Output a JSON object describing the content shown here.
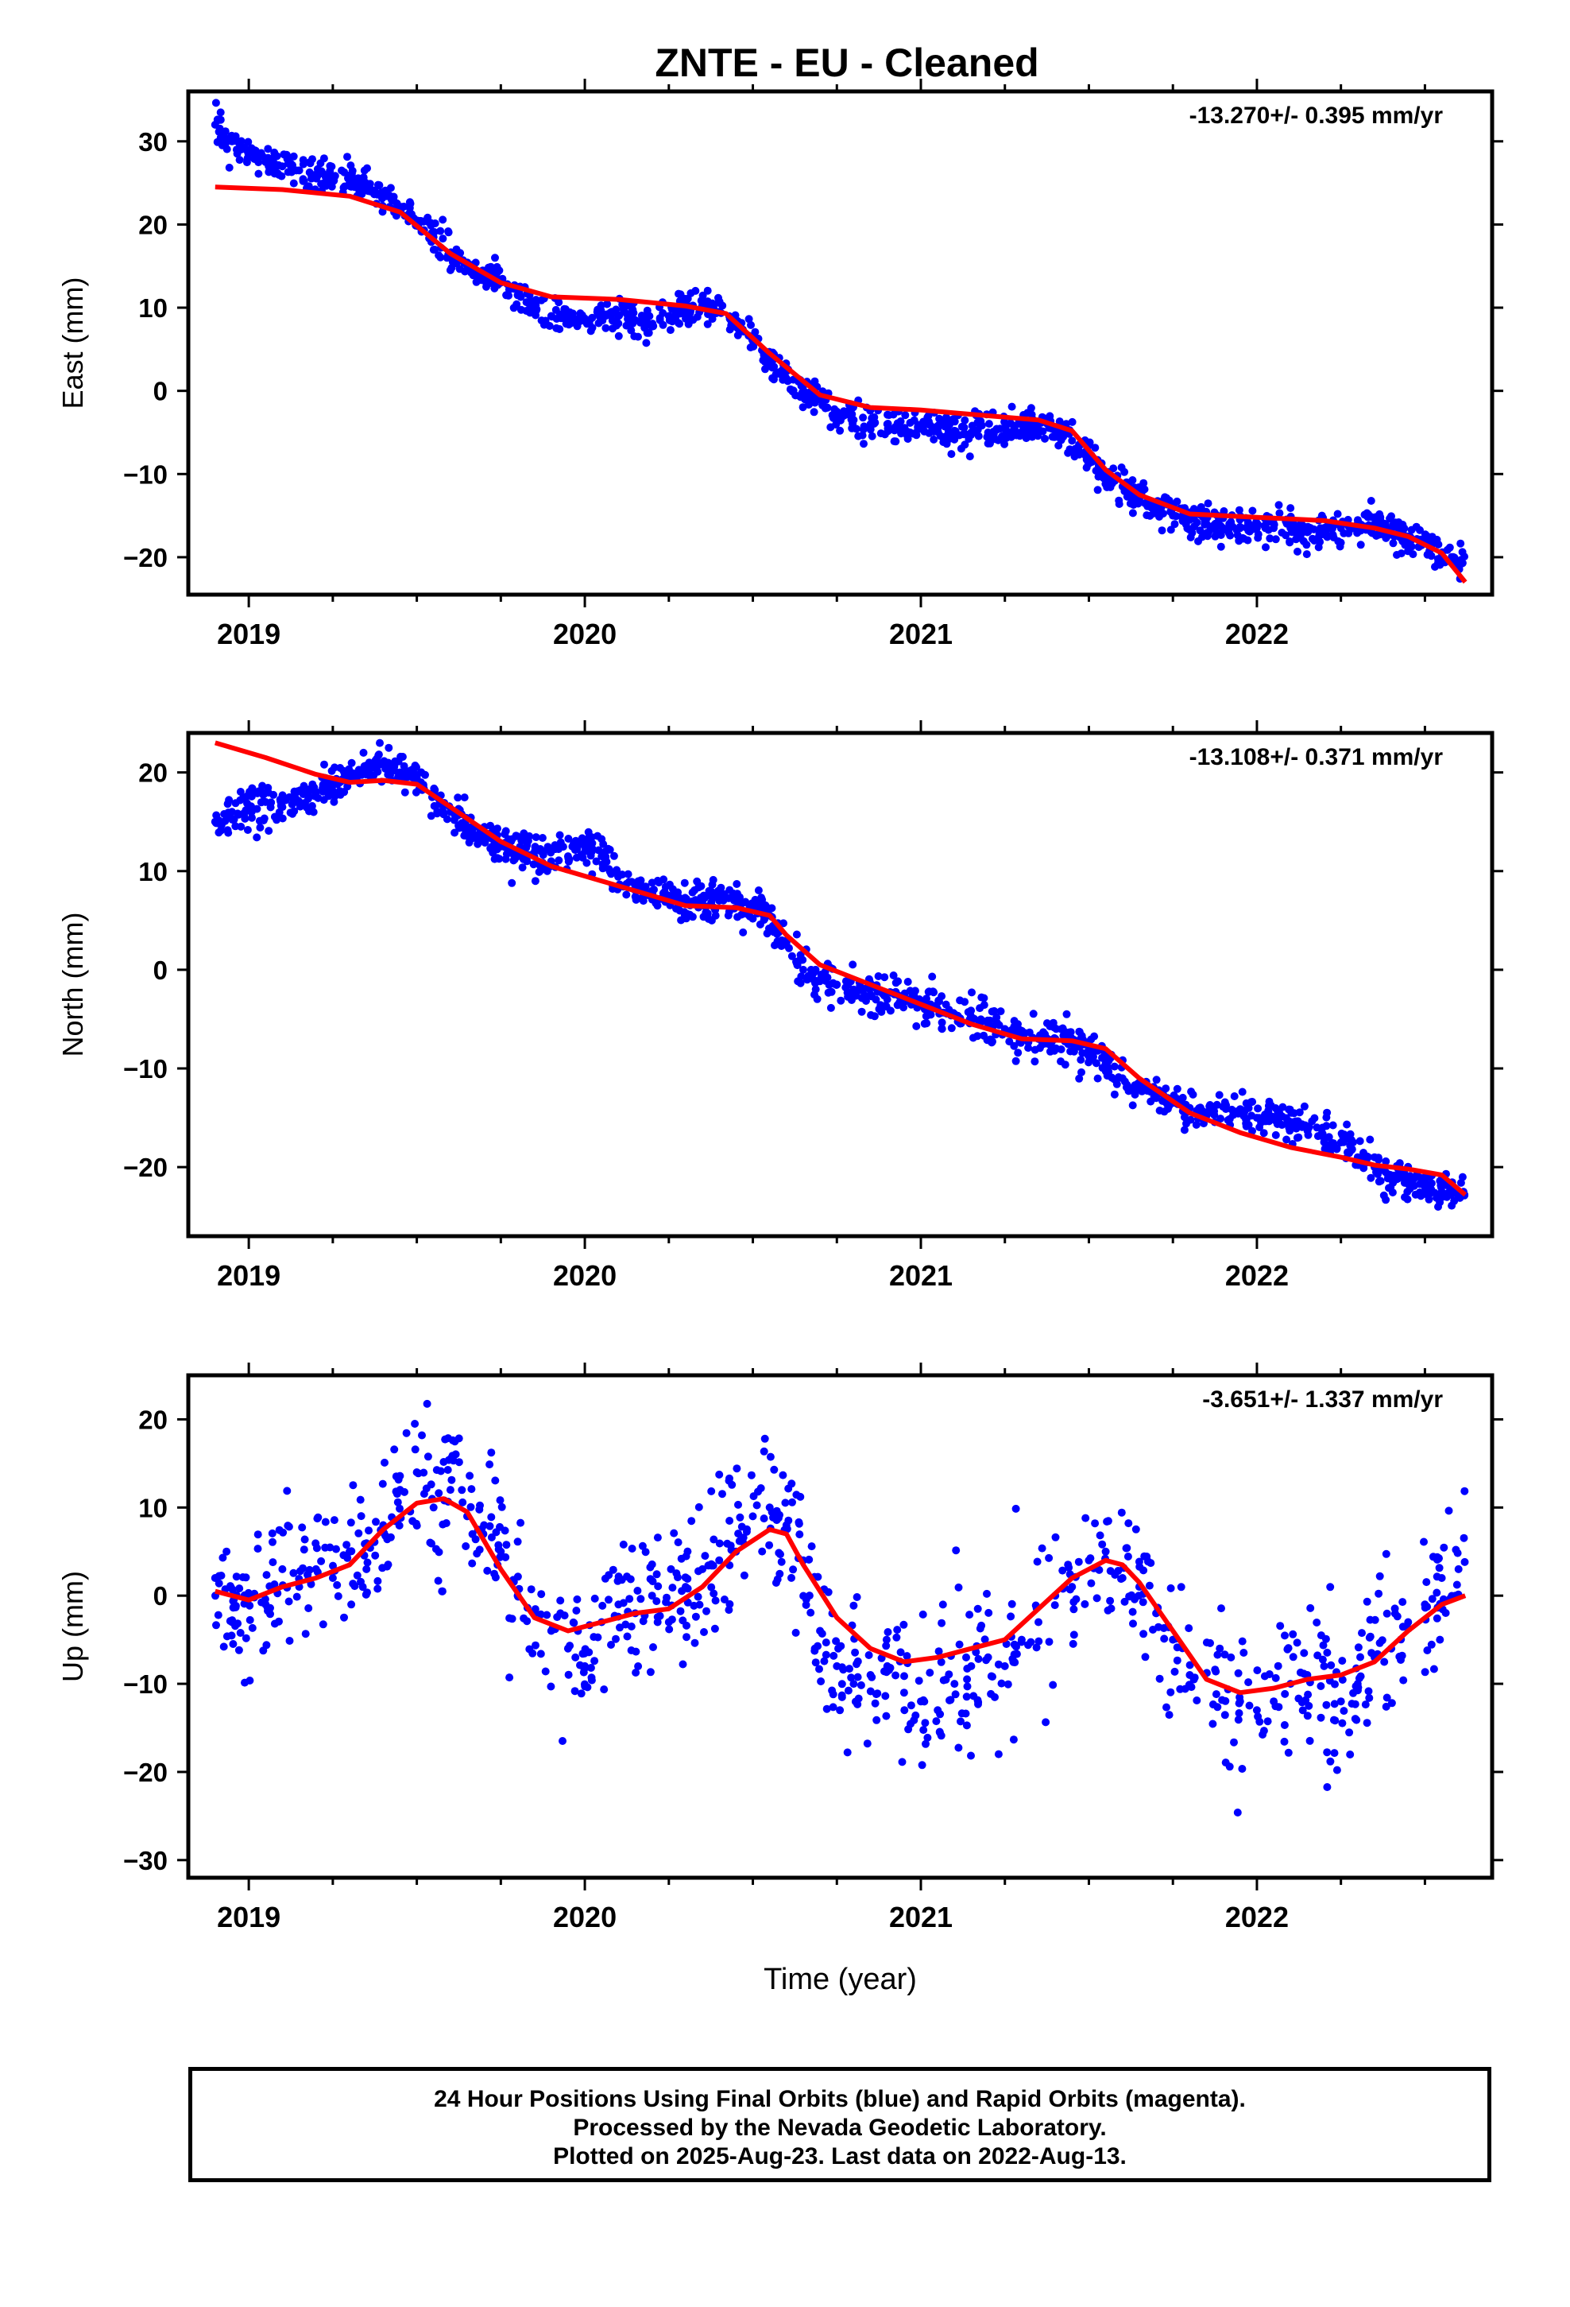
{
  "title": "ZNTE  - EU - Cleaned",
  "footer": {
    "line1": "24 Hour Positions Using Final Orbits (blue) and Rapid Orbits (magenta).",
    "line2": "Processed by the Nevada Geodetic Laboratory.",
    "line3": "Plotted on 2025-Aug-23. Last data on 2022-Aug-13."
  },
  "colors": {
    "points": "#0000ff",
    "fit": "#ff0000",
    "axis": "#000000"
  },
  "chart_data": [
    {
      "type": "scatter",
      "ylabel": "East (mm)",
      "xlabel": "",
      "rate": "-13.270+/- 0.395 mm/yr",
      "xlim": [
        2018.82,
        2022.7
      ],
      "ylim": [
        -24.5,
        36
      ],
      "xticks": [
        2019,
        2020,
        2021,
        2022
      ],
      "xtick_labels": [
        "2019",
        "2020",
        "2021",
        "2022"
      ],
      "yticks": [
        30,
        20,
        10,
        0,
        -10,
        -20
      ],
      "ytick_labels": [
        "30",
        "20",
        "10",
        "0",
        "−10",
        "−20"
      ],
      "data_start": 2018.9,
      "data_end": 2022.62,
      "fit": {
        "x": [
          2018.9,
          2019.1,
          2019.3,
          2019.45,
          2019.6,
          2019.75,
          2019.9,
          2020.1,
          2020.3,
          2020.42,
          2020.55,
          2020.7,
          2020.85,
          2021.0,
          2021.2,
          2021.35,
          2021.45,
          2021.55,
          2021.65,
          2021.8,
          2022.0,
          2022.2,
          2022.35,
          2022.45,
          2022.55,
          2022.62
        ],
        "y": [
          24.5,
          24.2,
          23.4,
          21.5,
          16.5,
          13.0,
          11.3,
          11.0,
          10.2,
          9.3,
          4.5,
          -0.5,
          -2.0,
          -2.3,
          -3.0,
          -3.5,
          -4.8,
          -9.5,
          -12.5,
          -14.8,
          -15.2,
          -15.6,
          -16.5,
          -17.5,
          -19.5,
          -23.0
        ]
      },
      "scatter": {
        "x": [
          2018.9,
          2018.95,
          2019.0,
          2019.05,
          2019.1,
          2019.15,
          2019.2,
          2019.25,
          2019.3,
          2019.35,
          2019.4,
          2019.45,
          2019.5,
          2019.55,
          2019.6,
          2019.65,
          2019.7,
          2019.75,
          2019.8,
          2019.85,
          2019.9,
          2019.95,
          2020.0,
          2020.05,
          2020.1,
          2020.15,
          2020.2,
          2020.25,
          2020.3,
          2020.35,
          2020.4,
          2020.45,
          2020.5,
          2020.55,
          2020.6,
          2020.65,
          2020.7,
          2020.75,
          2020.8,
          2020.85,
          2020.9,
          2020.95,
          2021.0,
          2021.05,
          2021.1,
          2021.15,
          2021.2,
          2021.25,
          2021.3,
          2021.35,
          2021.4,
          2021.45,
          2021.5,
          2021.55,
          2021.6,
          2021.65,
          2021.7,
          2021.75,
          2021.8,
          2021.95,
          2022.0,
          2022.05,
          2022.1,
          2022.15,
          2022.2,
          2022.25,
          2022.3,
          2022.35,
          2022.4,
          2022.45,
          2022.5,
          2022.55,
          2022.6
        ],
        "y": [
          32.0,
          30.0,
          28.5,
          27.5,
          27.0,
          26.5,
          26.0,
          25.5,
          25.0,
          24.5,
          23.5,
          22.0,
          20.5,
          18.5,
          16.5,
          15.0,
          14.0,
          13.0,
          11.5,
          10.0,
          9.0,
          8.5,
          8.5,
          8.7,
          9.0,
          8.5,
          8.0,
          9.0,
          9.5,
          10.0,
          9.5,
          8.0,
          6.0,
          3.5,
          1.5,
          0.0,
          -1.0,
          -2.5,
          -3.5,
          -4.0,
          -4.0,
          -4.5,
          -4.5,
          -4.5,
          -4.8,
          -5.0,
          -5.0,
          -4.5,
          -4.0,
          -4.0,
          -4.5,
          -6.0,
          -8.0,
          -10.0,
          -11.5,
          -13.0,
          -14.0,
          -15.0,
          -15.5,
          -16.5,
          -16.5,
          -16.5,
          -16.5,
          -17.0,
          -16.5,
          -16.5,
          -16.5,
          -16.0,
          -17.0,
          -17.5,
          -18.0,
          -19.5,
          -20.5
        ]
      }
    },
    {
      "type": "scatter",
      "ylabel": "North (mm)",
      "xlabel": "",
      "rate": "-13.108+/- 0.371 mm/yr",
      "xlim": [
        2018.82,
        2022.7
      ],
      "ylim": [
        -27,
        24
      ],
      "xticks": [
        2019,
        2020,
        2021,
        2022
      ],
      "xtick_labels": [
        "2019",
        "2020",
        "2021",
        "2022"
      ],
      "yticks": [
        20,
        10,
        0,
        -10,
        -20
      ],
      "ytick_labels": [
        "20",
        "10",
        "0",
        "−10",
        "−20"
      ],
      "data_start": 2018.9,
      "data_end": 2022.62,
      "fit": {
        "x": [
          2018.9,
          2019.05,
          2019.2,
          2019.3,
          2019.4,
          2019.5,
          2019.6,
          2019.75,
          2019.9,
          2020.05,
          2020.2,
          2020.3,
          2020.45,
          2020.55,
          2020.6,
          2020.7,
          2020.85,
          2021.0,
          2021.15,
          2021.3,
          2021.45,
          2021.55,
          2021.65,
          2021.8,
          2021.95,
          2022.1,
          2022.25,
          2022.35,
          2022.45,
          2022.55,
          2022.62
        ],
        "y": [
          23.0,
          21.5,
          19.8,
          19.0,
          19.2,
          18.8,
          16.5,
          13.0,
          10.5,
          9.0,
          7.5,
          6.5,
          6.3,
          5.5,
          3.5,
          0.5,
          -1.5,
          -3.5,
          -5.5,
          -7.0,
          -7.2,
          -8.0,
          -11.0,
          -14.5,
          -16.5,
          -18.0,
          -19.0,
          -19.8,
          -20.2,
          -20.8,
          -22.8
        ]
      },
      "scatter": {
        "x": [
          2018.9,
          2018.95,
          2019.0,
          2019.05,
          2019.1,
          2019.15,
          2019.2,
          2019.25,
          2019.3,
          2019.35,
          2019.4,
          2019.45,
          2019.5,
          2019.55,
          2019.6,
          2019.65,
          2019.7,
          2019.75,
          2019.8,
          2019.85,
          2019.9,
          2019.95,
          2020.0,
          2020.05,
          2020.1,
          2020.15,
          2020.2,
          2020.25,
          2020.3,
          2020.35,
          2020.4,
          2020.45,
          2020.5,
          2020.55,
          2020.6,
          2020.65,
          2020.7,
          2020.75,
          2020.8,
          2020.85,
          2020.9,
          2020.95,
          2021.0,
          2021.05,
          2021.1,
          2021.15,
          2021.2,
          2021.25,
          2021.3,
          2021.35,
          2021.4,
          2021.45,
          2021.5,
          2021.55,
          2021.6,
          2021.65,
          2021.7,
          2021.75,
          2021.8,
          2021.95,
          2022.0,
          2022.05,
          2022.1,
          2022.15,
          2022.2,
          2022.25,
          2022.3,
          2022.35,
          2022.4,
          2022.45,
          2022.5,
          2022.55,
          2022.6
        ],
        "y": [
          15.0,
          16.0,
          16.5,
          17.0,
          16.5,
          17.0,
          18.0,
          19.0,
          19.5,
          20.5,
          21.0,
          20.0,
          19.5,
          18.0,
          16.0,
          14.5,
          13.5,
          12.5,
          12.0,
          11.5,
          11.0,
          11.5,
          12.5,
          11.5,
          9.5,
          8.5,
          8.0,
          7.5,
          7.0,
          7.0,
          7.0,
          7.0,
          6.5,
          5.5,
          2.5,
          0.0,
          -1.0,
          -1.5,
          -2.0,
          -2.5,
          -3.0,
          -3.0,
          -3.5,
          -4.0,
          -4.5,
          -5.0,
          -5.5,
          -6.0,
          -6.5,
          -7.0,
          -7.0,
          -7.5,
          -8.0,
          -9.5,
          -11.0,
          -12.0,
          -13.0,
          -13.5,
          -14.0,
          -14.5,
          -15.0,
          -15.0,
          -15.5,
          -16.0,
          -17.0,
          -17.5,
          -19.0,
          -20.0,
          -21.0,
          -21.5,
          -22.0,
          -22.5,
          -23.0
        ]
      }
    },
    {
      "type": "scatter",
      "ylabel": "Up (mm)",
      "xlabel": "Time (year)",
      "rate": "-3.651+/- 1.337 mm/yr",
      "xlim": [
        2018.82,
        2022.7
      ],
      "ylim": [
        -32,
        25
      ],
      "xticks": [
        2019,
        2020,
        2021,
        2022
      ],
      "xtick_labels": [
        "2019",
        "2020",
        "2021",
        "2022"
      ],
      "yticks": [
        20,
        10,
        0,
        -10,
        -20,
        -30
      ],
      "ytick_labels": [
        "20",
        "10",
        "0",
        "−10",
        "−20",
        "−30"
      ],
      "data_start": 2018.9,
      "data_end": 2022.62,
      "fit": {
        "x": [
          2018.9,
          2019.0,
          2019.1,
          2019.2,
          2019.3,
          2019.4,
          2019.5,
          2019.58,
          2019.65,
          2019.75,
          2019.85,
          2019.95,
          2020.05,
          2020.15,
          2020.25,
          2020.35,
          2020.45,
          2020.55,
          2020.6,
          2020.65,
          2020.75,
          2020.85,
          2020.95,
          2021.05,
          2021.15,
          2021.25,
          2021.35,
          2021.45,
          2021.55,
          2021.6,
          2021.65,
          2021.75,
          2021.85,
          2021.95,
          2022.05,
          2022.15,
          2022.25,
          2022.35,
          2022.45,
          2022.55,
          2022.62
        ],
        "y": [
          0.5,
          -0.5,
          1.0,
          2.0,
          3.5,
          7.5,
          10.5,
          11.0,
          9.5,
          3.0,
          -2.5,
          -4.0,
          -3.0,
          -2.0,
          -1.5,
          1.0,
          5.0,
          7.5,
          7.0,
          3.5,
          -2.5,
          -6.0,
          -7.5,
          -7.0,
          -6.0,
          -5.0,
          -1.5,
          2.0,
          4.0,
          3.5,
          1.5,
          -4.0,
          -9.5,
          -11.0,
          -10.5,
          -9.5,
          -9.0,
          -7.5,
          -4.0,
          -1.0,
          0.0
        ]
      },
      "scatter": {
        "x": [
          2018.9,
          2018.95,
          2019.0,
          2019.05,
          2019.1,
          2019.15,
          2019.2,
          2019.25,
          2019.3,
          2019.35,
          2019.4,
          2019.45,
          2019.5,
          2019.55,
          2019.6,
          2019.65,
          2019.7,
          2019.75,
          2019.8,
          2019.85,
          2019.9,
          2019.95,
          2020.0,
          2020.05,
          2020.1,
          2020.15,
          2020.2,
          2020.25,
          2020.3,
          2020.35,
          2020.4,
          2020.45,
          2020.5,
          2020.55,
          2020.6,
          2020.65,
          2020.7,
          2020.75,
          2020.8,
          2020.85,
          2020.9,
          2020.95,
          2021.0,
          2021.05,
          2021.1,
          2021.15,
          2021.2,
          2021.25,
          2021.3,
          2021.35,
          2021.4,
          2021.45,
          2021.5,
          2021.55,
          2021.6,
          2021.65,
          2021.7,
          2021.75,
          2021.8,
          2021.95,
          2022.0,
          2022.05,
          2022.1,
          2022.15,
          2022.2,
          2022.25,
          2022.3,
          2022.35,
          2022.4,
          2022.45,
          2022.5,
          2022.55,
          2022.6
        ],
        "y": [
          2.0,
          -3.0,
          0.0,
          -1.0,
          3.0,
          1.0,
          3.0,
          2.0,
          5.0,
          3.0,
          8.0,
          12.0,
          14.0,
          10.0,
          12.0,
          9.0,
          8.0,
          5.0,
          0.0,
          -2.0,
          -4.0,
          -6.0,
          -8.0,
          -3.0,
          -1.0,
          -2.0,
          0.0,
          -3.0,
          1.0,
          3.0,
          4.0,
          5.0,
          9.0,
          10.0,
          8.0,
          4.0,
          -4.0,
          -8.0,
          -10.0,
          -9.0,
          -8.0,
          -11.0,
          -12.0,
          -13.0,
          -10.0,
          -8.0,
          -7.0,
          -8.0,
          -5.0,
          -3.0,
          0.0,
          1.0,
          4.0,
          5.0,
          2.0,
          1.0,
          -2.0,
          -5.0,
          -9.0,
          -12.0,
          -13.0,
          -12.0,
          -10.0,
          -9.0,
          -8.0,
          -12.0,
          -10.0,
          -7.0,
          -6.0,
          -3.0,
          -1.0,
          2.0,
          3.0
        ]
      }
    }
  ]
}
